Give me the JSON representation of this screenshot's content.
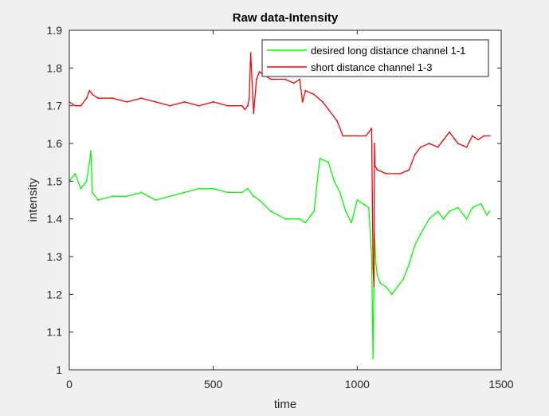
{
  "chart_data": {
    "type": "line",
    "title": "Raw data-Intensity",
    "xlabel": "time",
    "ylabel": "intensity",
    "xlim": [
      0,
      1500
    ],
    "ylim": [
      1,
      1.9
    ],
    "xticks": [
      0,
      500,
      1000,
      1500
    ],
    "yticks": [
      1,
      1.1,
      1.2,
      1.3,
      1.4,
      1.5,
      1.6,
      1.7,
      1.8,
      1.9
    ],
    "xtick_labels": [
      "0",
      "500",
      "1000",
      "1500"
    ],
    "ytick_labels": [
      "1",
      "1.1",
      "1.2",
      "1.3",
      "1.4",
      "1.5",
      "1.6",
      "1.7",
      "1.8",
      "1.9"
    ],
    "grid": false,
    "legend_position": "top-right",
    "series": [
      {
        "name": "desired long distance channel 1-1",
        "color": "#00ff00",
        "x": [
          0,
          20,
          40,
          60,
          70,
          75,
          80,
          100,
          150,
          200,
          250,
          300,
          350,
          400,
          450,
          500,
          550,
          600,
          620,
          640,
          660,
          700,
          750,
          800,
          820,
          840,
          850,
          870,
          900,
          920,
          940,
          960,
          980,
          1000,
          1020,
          1040,
          1050,
          1055,
          1060,
          1065,
          1070,
          1080,
          1100,
          1120,
          1140,
          1160,
          1180,
          1200,
          1220,
          1250,
          1280,
          1300,
          1320,
          1350,
          1380,
          1400,
          1430,
          1450,
          1460
        ],
        "y": [
          1.5,
          1.52,
          1.48,
          1.5,
          1.55,
          1.58,
          1.47,
          1.45,
          1.46,
          1.46,
          1.47,
          1.45,
          1.46,
          1.47,
          1.48,
          1.48,
          1.47,
          1.47,
          1.48,
          1.46,
          1.45,
          1.42,
          1.4,
          1.4,
          1.39,
          1.41,
          1.42,
          1.56,
          1.55,
          1.5,
          1.47,
          1.42,
          1.39,
          1.45,
          1.44,
          1.43,
          1.3,
          1.03,
          1.36,
          1.28,
          1.25,
          1.23,
          1.22,
          1.2,
          1.22,
          1.24,
          1.28,
          1.33,
          1.36,
          1.4,
          1.42,
          1.4,
          1.42,
          1.43,
          1.4,
          1.43,
          1.44,
          1.41,
          1.42
        ]
      },
      {
        "name": "short distance channel 1-3",
        "color": "#ff0000",
        "x": [
          0,
          20,
          40,
          60,
          70,
          80,
          100,
          150,
          200,
          250,
          300,
          350,
          400,
          450,
          500,
          550,
          600,
          610,
          620,
          625,
          630,
          640,
          650,
          660,
          700,
          750,
          780,
          800,
          810,
          820,
          850,
          880,
          900,
          930,
          950,
          970,
          1000,
          1030,
          1050,
          1055,
          1058,
          1060,
          1062,
          1070,
          1100,
          1150,
          1180,
          1200,
          1220,
          1250,
          1280,
          1300,
          1320,
          1340,
          1350,
          1380,
          1400,
          1420,
          1440,
          1460
        ],
        "y": [
          1.71,
          1.7,
          1.7,
          1.72,
          1.74,
          1.73,
          1.72,
          1.72,
          1.71,
          1.72,
          1.71,
          1.7,
          1.71,
          1.7,
          1.71,
          1.7,
          1.7,
          1.69,
          1.7,
          1.72,
          1.84,
          1.68,
          1.77,
          1.79,
          1.77,
          1.77,
          1.76,
          1.77,
          1.71,
          1.74,
          1.73,
          1.71,
          1.69,
          1.66,
          1.62,
          1.62,
          1.62,
          1.62,
          1.64,
          1.27,
          1.22,
          1.6,
          1.54,
          1.53,
          1.52,
          1.52,
          1.53,
          1.57,
          1.59,
          1.6,
          1.59,
          1.61,
          1.63,
          1.61,
          1.6,
          1.59,
          1.62,
          1.61,
          1.62,
          1.62
        ]
      }
    ]
  }
}
